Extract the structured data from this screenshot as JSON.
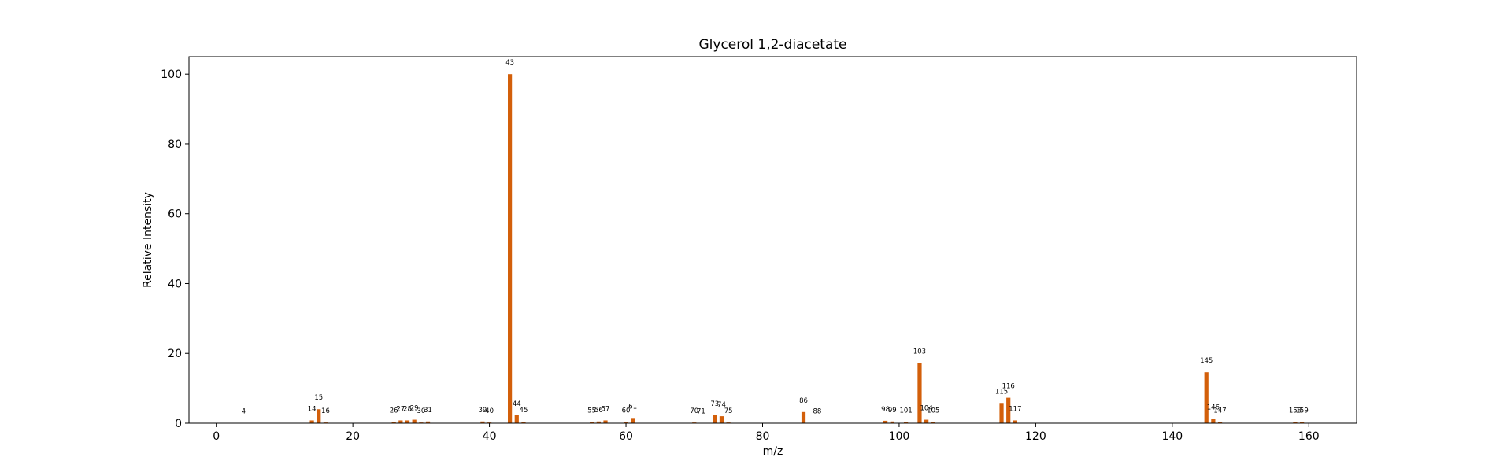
{
  "chart_data": {
    "type": "bar",
    "title": "Glycerol 1,2-diacetate",
    "xlabel": "m/z",
    "ylabel": "Relative Intensity",
    "xlim": [
      -4,
      167
    ],
    "ylim": [
      0,
      105
    ],
    "xticks": [
      0,
      20,
      40,
      60,
      80,
      100,
      120,
      140,
      160
    ],
    "yticks": [
      0,
      20,
      40,
      60,
      80,
      100
    ],
    "bar_color": "#d35f0a",
    "grid": false,
    "series": [
      {
        "x": [
          4,
          14,
          15,
          16,
          26,
          27,
          28,
          29,
          30,
          31,
          39,
          40,
          43,
          44,
          45,
          55,
          56,
          57,
          60,
          61,
          70,
          71,
          73,
          74,
          75,
          86,
          88,
          98,
          99,
          101,
          103,
          104,
          105,
          115,
          116,
          117,
          145,
          146,
          147,
          158,
          159
        ],
        "values": [
          0.1,
          0.8,
          4.0,
          0.2,
          0.3,
          0.8,
          0.8,
          1.0,
          0.2,
          0.5,
          0.5,
          0.2,
          100,
          2.3,
          0.4,
          0.3,
          0.5,
          0.8,
          0.3,
          1.5,
          0.2,
          0.1,
          2.3,
          2.0,
          0.2,
          3.2,
          0.1,
          0.7,
          0.5,
          0.3,
          17.2,
          1.0,
          0.3,
          5.8,
          7.3,
          0.8,
          14.6,
          1.2,
          0.3,
          0.3,
          0.3
        ],
        "labels": [
          "4",
          "14",
          "15",
          "16",
          "26",
          "27",
          "28",
          "29",
          "30",
          "31",
          "39",
          "40",
          "43",
          "44",
          "45",
          "55",
          "56",
          "57",
          "60",
          "61",
          "70",
          "71",
          "73",
          "74",
          "75",
          "86",
          "88",
          "98",
          "99",
          "101",
          "103",
          "104",
          "105",
          "115",
          "116",
          "117",
          "145",
          "146",
          "147",
          "158",
          "159"
        ]
      }
    ]
  }
}
